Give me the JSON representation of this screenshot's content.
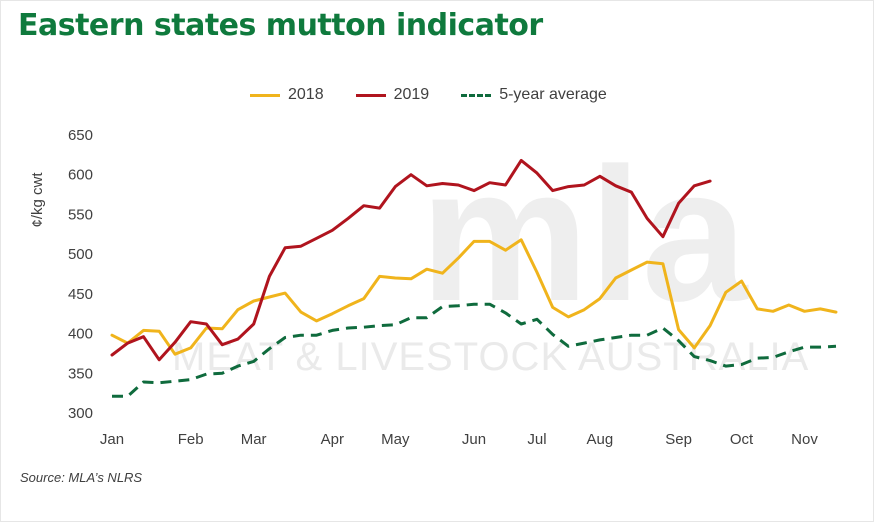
{
  "title": "Eastern states mutton indicator",
  "source": "Source: MLA’s NLRS",
  "watermark": {
    "logo": "mla",
    "text": "MEAT & LIVESTOCK AUSTRALIA"
  },
  "colors": {
    "2018": "#f0b41c",
    "2019": "#b0141e",
    "average": "#0f6b3d",
    "title": "#0f7a3d"
  },
  "chart_data": {
    "type": "line",
    "title": "Eastern states mutton indicator",
    "xlabel": "",
    "ylabel": "¢/kg cwt",
    "ylim": [
      300,
      650
    ],
    "yticks": [
      300,
      350,
      400,
      450,
      500,
      550,
      600,
      650
    ],
    "xlim": [
      1,
      47
    ],
    "xticks": [
      {
        "label": "Jan",
        "week": 1
      },
      {
        "label": "Feb",
        "week": 6
      },
      {
        "label": "Mar",
        "week": 10
      },
      {
        "label": "Apr",
        "week": 15
      },
      {
        "label": "May",
        "week": 19
      },
      {
        "label": "Jun",
        "week": 24
      },
      {
        "label": "Jul",
        "week": 28
      },
      {
        "label": "Aug",
        "week": 32
      },
      {
        "label": "Sep",
        "week": 37
      },
      {
        "label": "Oct",
        "week": 41
      },
      {
        "label": "Nov",
        "week": 45
      }
    ],
    "grid": false,
    "legend_position": "top-center",
    "series": [
      {
        "name": "2018",
        "color": "#f0b41c",
        "style": "solid",
        "weeks": [
          1,
          2,
          3,
          4,
          5,
          6,
          7,
          8,
          9,
          10,
          11,
          12,
          13,
          14,
          15,
          16,
          17,
          18,
          19,
          20,
          21,
          22,
          23,
          24,
          25,
          26,
          27,
          28,
          29,
          30,
          31,
          32,
          33,
          34,
          35,
          36,
          37,
          38,
          39,
          40,
          41,
          42,
          43,
          44,
          45,
          46,
          47
        ],
        "values": [
          398,
          388,
          404,
          403,
          374,
          382,
          407,
          406,
          430,
          441,
          446,
          451,
          427,
          416,
          425,
          435,
          444,
          472,
          470,
          469,
          481,
          476,
          495,
          516,
          516,
          505,
          518,
          477,
          433,
          421,
          430,
          444,
          470,
          480,
          490,
          488,
          405,
          382,
          410,
          452,
          466,
          431,
          428,
          436,
          428,
          431,
          427
        ]
      },
      {
        "name": "2019",
        "color": "#b0141e",
        "style": "solid",
        "weeks": [
          1,
          2,
          3,
          4,
          5,
          6,
          7,
          8,
          9,
          10,
          11,
          12,
          13,
          14,
          15,
          16,
          17,
          18,
          19,
          20,
          21,
          22,
          23,
          24,
          25,
          26,
          27,
          28,
          29,
          30,
          31,
          32,
          33,
          34,
          35,
          36,
          37,
          38,
          39
        ],
        "values": [
          373,
          388,
          396,
          367,
          389,
          415,
          412,
          386,
          393,
          412,
          472,
          508,
          510,
          520,
          530,
          545,
          561,
          558,
          585,
          600,
          586,
          589,
          587,
          580,
          590,
          587,
          618,
          602,
          580,
          585,
          587,
          598,
          586,
          578,
          545,
          522,
          564,
          586,
          592
        ]
      },
      {
        "name": "5-year average",
        "color": "#0f6b3d",
        "style": "dashed",
        "weeks": [
          1,
          2,
          3,
          4,
          5,
          6,
          7,
          8,
          9,
          10,
          11,
          12,
          13,
          14,
          15,
          16,
          17,
          18,
          19,
          20,
          21,
          22,
          23,
          24,
          25,
          26,
          27,
          28,
          29,
          30,
          31,
          32,
          33,
          34,
          35,
          36,
          37,
          38,
          39,
          40,
          41,
          42,
          43,
          44,
          45,
          46,
          47
        ],
        "values": [
          321,
          321,
          339,
          338,
          340,
          342,
          349,
          350,
          359,
          365,
          381,
          395,
          398,
          398,
          404,
          407,
          408,
          410,
          411,
          420,
          420,
          434,
          435,
          437,
          437,
          426,
          412,
          418,
          399,
          384,
          388,
          392,
          395,
          398,
          398,
          407,
          391,
          371,
          366,
          359,
          361,
          369,
          370,
          377,
          383,
          383,
          384
        ]
      }
    ]
  }
}
